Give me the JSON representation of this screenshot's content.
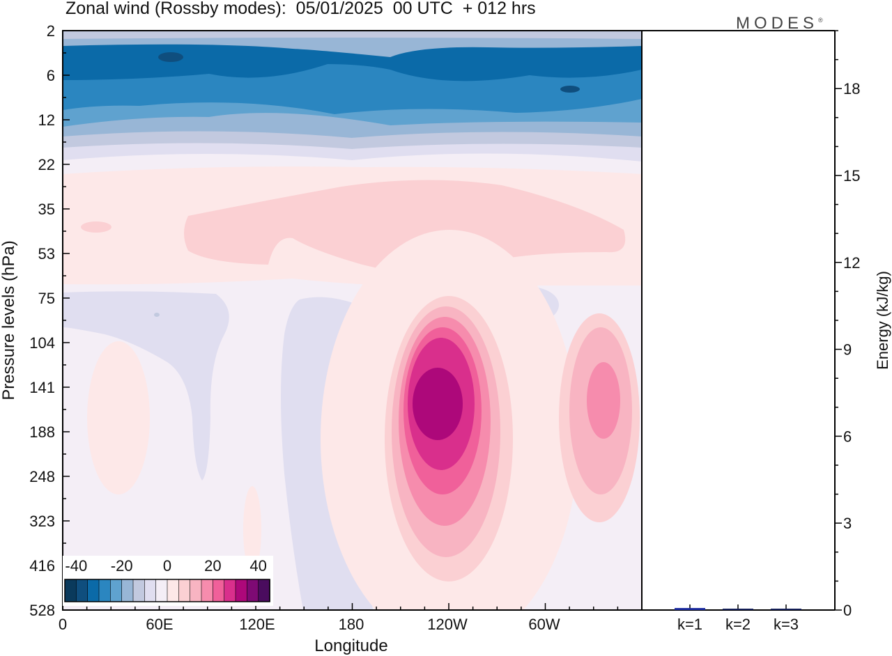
{
  "title": "Zonal wind (Rossby modes):  05/01/2025  00 UTC  + 012 hrs",
  "brand": "MODES",
  "brand_mark": "®",
  "chart_data": [
    {
      "type": "heatmap",
      "xlabel": "Longitude",
      "ylabel": "Pressure levels (hPa)",
      "x_ticks": [
        "0",
        "60E",
        "120E",
        "180",
        "120W",
        "60W"
      ],
      "y_ticks": [
        "2",
        "6",
        "12",
        "22",
        "35",
        "53",
        "75",
        "104",
        "141",
        "188",
        "248",
        "323",
        "416",
        "528"
      ],
      "colorbar": {
        "tick_labels": [
          "-40",
          "-20",
          "0",
          "20",
          "40"
        ],
        "range": [
          -45,
          45
        ],
        "step": 5,
        "colors": [
          "#0a3a5c",
          "#0f4e7e",
          "#0b6aa8",
          "#2b86c0",
          "#5fa2cf",
          "#98b6d6",
          "#c2c9df",
          "#e0def0",
          "#f4eef6",
          "#fde8e8",
          "#fbd0d3",
          "#f8b4c2",
          "#f68cad",
          "#f0609a",
          "#d92f8c",
          "#ad087a",
          "#7e0a74",
          "#4a0c5e"
        ]
      }
    },
    {
      "type": "bar",
      "ylabel": "Energy (kJ/kg)",
      "y_ticks": [
        "0",
        "3",
        "6",
        "9",
        "12",
        "15",
        "18"
      ],
      "ylim": [
        0,
        20
      ],
      "categories": [
        "k=1",
        "k=2",
        "k=3"
      ],
      "values": [
        0.07,
        0.03,
        0.03
      ],
      "colors": [
        "#1a2aa0",
        "#15205a",
        "#15205a"
      ]
    }
  ]
}
